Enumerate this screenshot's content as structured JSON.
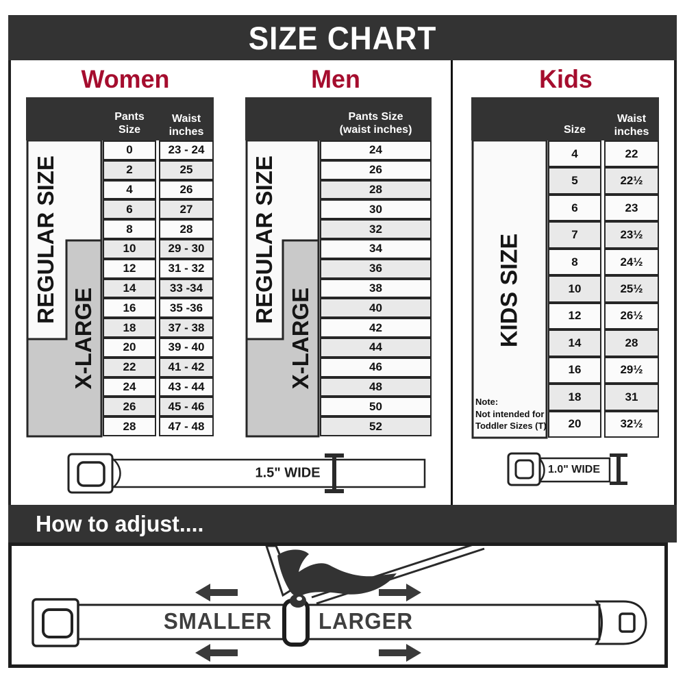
{
  "title": "SIZE CHART",
  "colors": {
    "accent": "#a50d2e",
    "bar_background": "#333333",
    "row_alt": "#e9e9e9",
    "band_gray": "#c9c9c9"
  },
  "women": {
    "title": "Women",
    "size_header": "Pants Size",
    "waist_header": "Waist\ninches",
    "regular_label": "REGULAR SIZE",
    "xlarge_label": "X-LARGE",
    "rows": [
      [
        "0",
        "23 - 24"
      ],
      [
        "2",
        "25"
      ],
      [
        "4",
        "26"
      ],
      [
        "6",
        "27"
      ],
      [
        "8",
        "28"
      ],
      [
        "10",
        "29 - 30"
      ],
      [
        "12",
        "31 - 32"
      ],
      [
        "14",
        "33 -34"
      ],
      [
        "16",
        "35 -36"
      ],
      [
        "18",
        "37 - 38"
      ],
      [
        "20",
        "39 - 40"
      ],
      [
        "22",
        "41 - 42"
      ],
      [
        "24",
        "43 - 44"
      ],
      [
        "26",
        "45 - 46"
      ],
      [
        "28",
        "47 - 48"
      ]
    ]
  },
  "men": {
    "title": "Men",
    "size_header": "Pants Size\n(waist inches)",
    "regular_label": "REGULAR SIZE",
    "xlarge_label": "X-LARGE",
    "sizes": [
      "24",
      "26",
      "28",
      "30",
      "32",
      "34",
      "36",
      "38",
      "40",
      "42",
      "44",
      "46",
      "48",
      "50",
      "52"
    ]
  },
  "kids": {
    "title": "Kids",
    "size_header": "Size",
    "waist_header": "Waist\ninches",
    "band_label": "KIDS SIZE",
    "note": "Note:\nNot intended for\nToddler Sizes (T)",
    "rows": [
      [
        "4",
        "22"
      ],
      [
        "5",
        "22½"
      ],
      [
        "6",
        "23"
      ],
      [
        "7",
        "23½"
      ],
      [
        "8",
        "24½"
      ],
      [
        "10",
        "25½"
      ],
      [
        "12",
        "26½"
      ],
      [
        "14",
        "28"
      ],
      [
        "16",
        "29½"
      ],
      [
        "18",
        "31"
      ],
      [
        "20",
        "32½"
      ]
    ]
  },
  "belts": {
    "adult_width": "1.5\" WIDE",
    "kids_width": "1.0\" WIDE"
  },
  "adjust": {
    "title": "How to adjust....",
    "smaller": "SMALLER",
    "larger": "LARGER"
  }
}
